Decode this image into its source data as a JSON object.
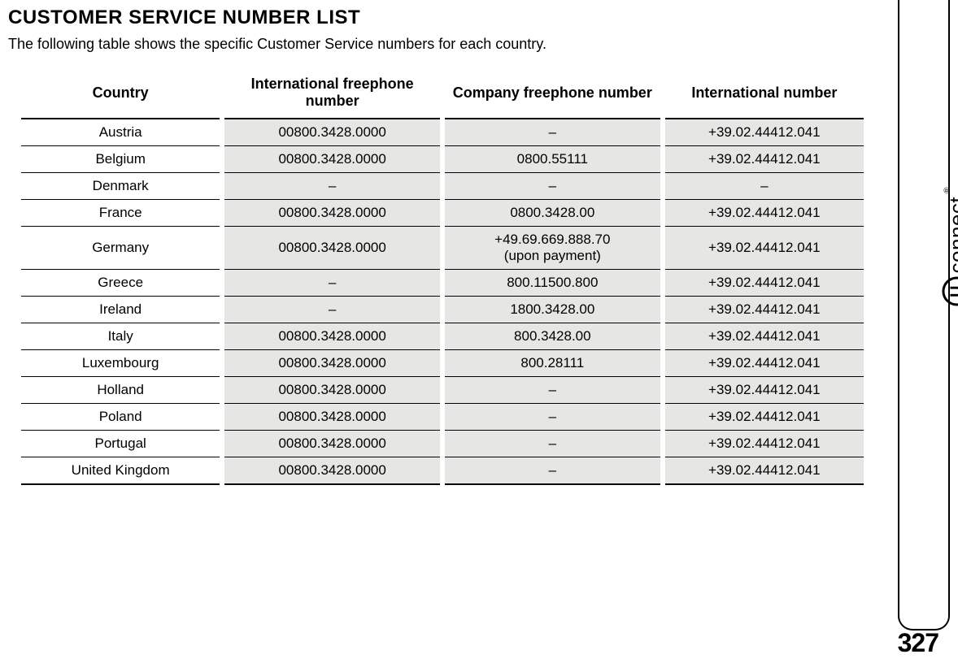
{
  "title": "CUSTOMER SERVICE NUMBER LIST",
  "subtitle": "The following table shows the specific Customer Service numbers for each country.",
  "table": {
    "columns": [
      "Country",
      "International freephone number",
      "Company freephone number",
      "International number"
    ],
    "col_widths_pct": [
      24,
      26,
      26,
      24
    ],
    "header_fontsize": 18,
    "cell_fontsize": 17,
    "shaded_bg": "#e6e6e4",
    "border_color": "#000000",
    "rows": [
      [
        "Austria",
        "00800.3428.0000",
        "–",
        "+39.02.44412.041"
      ],
      [
        "Belgium",
        "00800.3428.0000",
        "0800.55111",
        "+39.02.44412.041"
      ],
      [
        "Denmark",
        "–",
        "–",
        "–"
      ],
      [
        "France",
        "00800.3428.0000",
        "0800.3428.00",
        "+39.02.44412.041"
      ],
      [
        "Germany",
        "00800.3428.0000",
        "+49.69.669.888.70 (upon payment)",
        "+39.02.44412.041"
      ],
      [
        "Greece",
        "–",
        "800.11500.800",
        "+39.02.44412.041"
      ],
      [
        "Ireland",
        "–",
        "1800.3428.00",
        "+39.02.44412.041"
      ],
      [
        "Italy",
        "00800.3428.0000",
        "800.3428.00",
        "+39.02.44412.041"
      ],
      [
        "Luxembourg",
        "00800.3428.0000",
        "800.28111",
        "+39.02.44412.041"
      ],
      [
        "Holland",
        "00800.3428.0000",
        "–",
        "+39.02.44412.041"
      ],
      [
        "Poland",
        "00800.3428.0000",
        "–",
        "+39.02.44412.041"
      ],
      [
        "Portugal",
        "00800.3428.0000",
        "–",
        "+39.02.44412.041"
      ],
      [
        "United Kingdom",
        "00800.3428.0000",
        "–",
        "+39.02.44412.041"
      ]
    ]
  },
  "sidebar": {
    "brand_text": "connect",
    "brand_letter": "U",
    "registered": "®"
  },
  "page_number": "327"
}
